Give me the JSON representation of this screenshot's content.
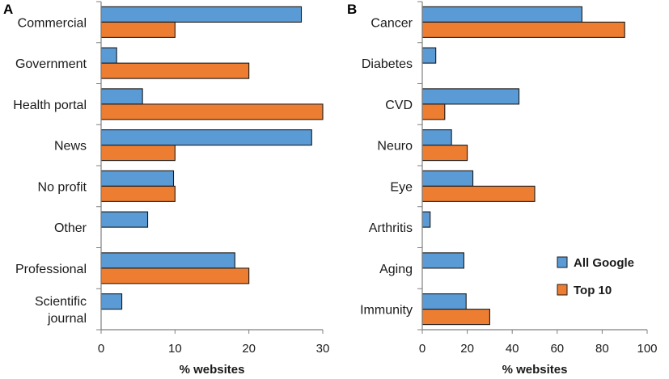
{
  "chart_data": [
    {
      "type": "bar",
      "orientation": "horizontal",
      "panel_label": "A",
      "xlabel": "% websites",
      "xlim": [
        0,
        30
      ],
      "xticks": [
        0,
        10,
        20,
        30
      ],
      "categories": [
        "Commercial",
        "Government",
        "Health portal",
        "News",
        "No profit",
        "Other",
        "Professional",
        "Scientific journal"
      ],
      "category_lines": [
        [
          "Commercial"
        ],
        [
          "Government"
        ],
        [
          "Health portal"
        ],
        [
          "News"
        ],
        [
          "No profit"
        ],
        [
          "Other"
        ],
        [
          "Professional"
        ],
        [
          "Scientific",
          "journal"
        ]
      ],
      "series": [
        {
          "name": "All Google",
          "color": "#5b9bd5",
          "values": [
            27.1,
            2.1,
            5.6,
            28.5,
            9.8,
            6.3,
            18.1,
            2.8
          ]
        },
        {
          "name": "Top 10",
          "color": "#ed7d31",
          "values": [
            10,
            20,
            30,
            10,
            10,
            0,
            20,
            0
          ]
        }
      ]
    },
    {
      "type": "bar",
      "orientation": "horizontal",
      "panel_label": "B",
      "xlabel": "% websites",
      "xlim": [
        0,
        100
      ],
      "xticks": [
        0,
        20,
        40,
        60,
        80,
        100
      ],
      "categories": [
        "Cancer",
        "Diabetes",
        "CVD",
        "Neuro",
        "Eye",
        "Arthritis",
        "Aging",
        "Immunity"
      ],
      "category_lines": [
        [
          "Cancer"
        ],
        [
          "Diabetes"
        ],
        [
          "CVD"
        ],
        [
          "Neuro"
        ],
        [
          "Eye"
        ],
        [
          "Arthritis"
        ],
        [
          "Aging"
        ],
        [
          "Immunity"
        ]
      ],
      "series": [
        {
          "name": "All Google",
          "color": "#5b9bd5",
          "values": [
            71,
            6,
            43,
            13,
            22.5,
            3.5,
            18.5,
            19.5
          ]
        },
        {
          "name": "Top 10",
          "color": "#ed7d31",
          "values": [
            90,
            0,
            10,
            20,
            50,
            0,
            0,
            30
          ]
        }
      ],
      "legend": {
        "position": "bottom-right",
        "entries": [
          "All Google",
          "Top 10"
        ]
      }
    }
  ]
}
